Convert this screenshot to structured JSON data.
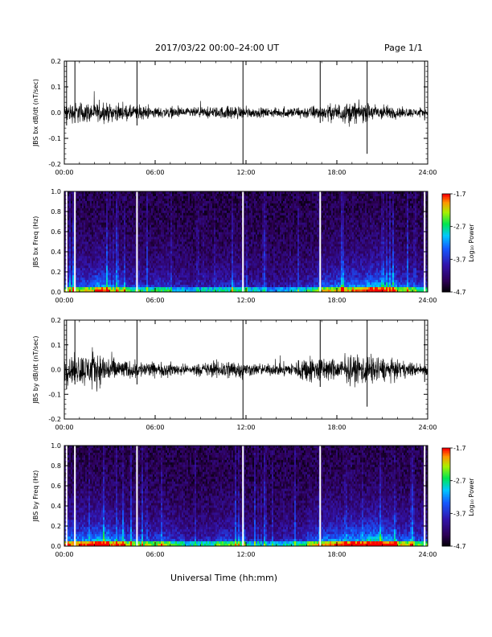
{
  "header": {
    "date_range": "2017/03/22  00:00–24:00 UT",
    "page": "Page 1/1"
  },
  "xaxis_title": "Universal Time (hh:mm)",
  "colorbar": {
    "ticks": [
      "-1.7",
      "-2.7",
      "-3.7",
      "-4.7"
    ],
    "label": "Log₁₀ Power",
    "range": [
      -4.7,
      -1.7
    ]
  },
  "chart_data": [
    {
      "type": "line",
      "ylabel": "JBS bx dB/dt (nT/sec)",
      "x_ticks": [
        "00:00",
        "06:00",
        "12:00",
        "18:00",
        "24:00"
      ],
      "y_ticks": [
        "0.2",
        "0.1",
        "0.0",
        "-0.1",
        "-0.2"
      ],
      "xlim": [
        0,
        24
      ],
      "ylim": [
        -0.2,
        0.2
      ],
      "x_unit": "hours UT",
      "envelope": {
        "hours": [
          0,
          1,
          2,
          3,
          4,
          5,
          6,
          7,
          8,
          9,
          10,
          11,
          12,
          13,
          14,
          15,
          16,
          17,
          18,
          19,
          20,
          21,
          22,
          23,
          24
        ],
        "amplitude": [
          0.05,
          0.06,
          0.05,
          0.05,
          0.04,
          0.04,
          0.03,
          0.03,
          0.025,
          0.03,
          0.03,
          0.04,
          0.03,
          0.025,
          0.025,
          0.03,
          0.035,
          0.04,
          0.05,
          0.06,
          0.05,
          0.045,
          0.03,
          0.025,
          0.02
        ]
      },
      "spikes": [
        {
          "hour": 0.15,
          "min": -0.05,
          "max": 0.2
        },
        {
          "hour": 0.7,
          "min": -0.04,
          "max": 0.2
        },
        {
          "hour": 4.8,
          "min": -0.05,
          "max": 0.2
        },
        {
          "hour": 11.8,
          "min": -0.2,
          "max": 0.2
        },
        {
          "hour": 16.9,
          "min": -0.04,
          "max": 0.2
        },
        {
          "hour": 20.0,
          "min": -0.16,
          "max": 0.2
        },
        {
          "hour": 23.8,
          "min": -0.03,
          "max": 0.2
        }
      ]
    },
    {
      "type": "heatmap",
      "ylabel": "JBS bx Freq (Hz)",
      "x_ticks": [
        "00:00",
        "06:00",
        "12:00",
        "18:00",
        "24:00"
      ],
      "y_ticks": [
        "1.0",
        "0.8",
        "0.6",
        "0.4",
        "0.2",
        "0.0"
      ],
      "xlim": [
        0,
        24
      ],
      "ylim": [
        0,
        1.0
      ],
      "z_unit": "Log10 Power",
      "zlim": [
        -4.7,
        -1.7
      ],
      "hour_activity": [
        0.55,
        0.6,
        0.75,
        0.55,
        0.45,
        0.4,
        0.45,
        0.35,
        0.3,
        0.35,
        0.4,
        0.45,
        0.35,
        0.25,
        0.3,
        0.35,
        0.45,
        0.6,
        0.65,
        0.7,
        0.8,
        0.7,
        0.55,
        0.45
      ],
      "gap_hours": [
        0.15,
        0.7,
        4.8,
        11.8,
        16.9,
        23.8
      ]
    },
    {
      "type": "line",
      "ylabel": "JBS by dB/dt (nT/sec)",
      "x_ticks": [
        "00:00",
        "06:00",
        "12:00",
        "18:00",
        "24:00"
      ],
      "y_ticks": [
        "0.2",
        "0.1",
        "0.0",
        "-0.1",
        "-0.2"
      ],
      "xlim": [
        0,
        24
      ],
      "ylim": [
        -0.2,
        0.2
      ],
      "x_unit": "hours UT",
      "envelope": {
        "hours": [
          0,
          1,
          2,
          3,
          4,
          5,
          6,
          7,
          8,
          9,
          10,
          11,
          12,
          13,
          14,
          15,
          16,
          17,
          18,
          19,
          20,
          21,
          22,
          23,
          24
        ],
        "amplitude": [
          0.07,
          0.09,
          0.1,
          0.08,
          0.05,
          0.05,
          0.04,
          0.04,
          0.03,
          0.035,
          0.05,
          0.06,
          0.04,
          0.03,
          0.035,
          0.04,
          0.08,
          0.07,
          0.06,
          0.08,
          0.09,
          0.07,
          0.05,
          0.04,
          0.03
        ]
      },
      "spikes": [
        {
          "hour": 0.15,
          "min": -0.08,
          "max": 0.2
        },
        {
          "hour": 0.7,
          "min": -0.06,
          "max": 0.2
        },
        {
          "hour": 4.8,
          "min": -0.06,
          "max": 0.2
        },
        {
          "hour": 11.8,
          "min": -0.2,
          "max": 0.2
        },
        {
          "hour": 16.9,
          "min": -0.07,
          "max": 0.2
        },
        {
          "hour": 20.0,
          "min": -0.15,
          "max": 0.2
        },
        {
          "hour": 23.8,
          "min": -0.05,
          "max": 0.2
        }
      ]
    },
    {
      "type": "heatmap",
      "ylabel": "JBS by Freq (Hz)",
      "x_ticks": [
        "00:00",
        "06:00",
        "12:00",
        "18:00",
        "24:00"
      ],
      "y_ticks": [
        "1.0",
        "0.8",
        "0.6",
        "0.4",
        "0.2",
        "0.0"
      ],
      "xlim": [
        0,
        24
      ],
      "ylim": [
        0,
        1.0
      ],
      "z_unit": "Log10 Power",
      "zlim": [
        -4.7,
        -1.7
      ],
      "hour_activity": [
        0.7,
        0.75,
        0.85,
        0.7,
        0.55,
        0.5,
        0.55,
        0.45,
        0.35,
        0.4,
        0.5,
        0.5,
        0.35,
        0.3,
        0.35,
        0.4,
        0.6,
        0.7,
        0.75,
        0.8,
        0.9,
        0.8,
        0.6,
        0.5
      ],
      "gap_hours": [
        0.15,
        0.7,
        4.8,
        11.8,
        16.9,
        23.8
      ]
    }
  ]
}
